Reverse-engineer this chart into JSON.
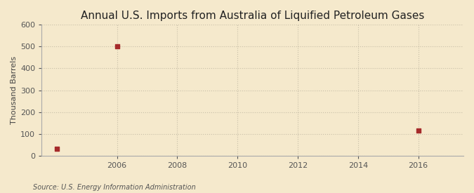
{
  "title": "Annual U.S. Imports from Australia of Liquified Petroleum Gases",
  "ylabel": "Thousand Barrels",
  "source_text": "Source: U.S. Energy Information Administration",
  "x_data": [
    2004,
    2006,
    2016
  ],
  "y_data": [
    30,
    500,
    115
  ],
  "xlim": [
    2003.5,
    2017.5
  ],
  "ylim": [
    0,
    600
  ],
  "yticks": [
    0,
    100,
    200,
    300,
    400,
    500,
    600
  ],
  "xticks": [
    2006,
    2008,
    2010,
    2012,
    2014,
    2016
  ],
  "marker_color": "#a52a2a",
  "marker_size": 4,
  "background_color": "#f5e9cc",
  "grid_color": "#c8bfa8",
  "title_fontsize": 11,
  "label_fontsize": 8,
  "tick_fontsize": 8,
  "source_fontsize": 7
}
